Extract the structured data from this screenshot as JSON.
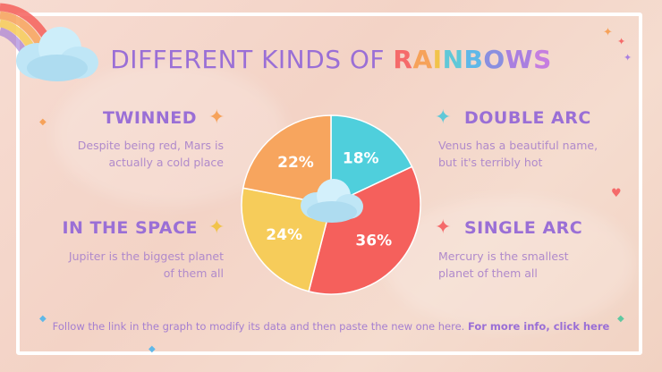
{
  "title": {
    "prefix": "DIFFERENT KINDS OF ",
    "highlight_letters": [
      "R",
      "A",
      "I",
      "N",
      "B",
      "O",
      "W",
      "S"
    ]
  },
  "highlight_colors": [
    "#f56a6a",
    "#f6a25a",
    "#f1c34a",
    "#5fc8d8",
    "#5fb8e8",
    "#8a8fe0",
    "#a97fe0",
    "#c57ee0"
  ],
  "sections": [
    {
      "heading": "TWINNED",
      "text_lines": [
        "Despite being red, Mars is",
        "actually a cold place"
      ],
      "star_color": "#f6a25a"
    },
    {
      "heading": "IN THE SPACE",
      "text_lines": [
        "Jupiter is the biggest planet",
        "of them all"
      ],
      "star_color": "#f1c34a"
    },
    {
      "heading": "DOUBLE ARC",
      "text_lines": [
        "Venus has a beautiful name,",
        "but it's terribly hot"
      ],
      "star_color": "#5fc8d8"
    },
    {
      "heading": "SINGLE ARC",
      "text_lines": [
        "Mercury is the smallest",
        "planet of them all"
      ],
      "star_color": "#f56a6a"
    }
  ],
  "footer": {
    "text": "Follow the link in the graph to modify its data and then paste the new one here. ",
    "link": "For more info, click here"
  },
  "chart_data": {
    "type": "pie",
    "values": [
      18,
      36,
      24,
      22
    ],
    "labels": [
      "18%",
      "36%",
      "24%",
      "22%"
    ],
    "colors": [
      "#4fcfdc",
      "#f5605c",
      "#f6cc5a",
      "#f7a55e"
    ]
  }
}
